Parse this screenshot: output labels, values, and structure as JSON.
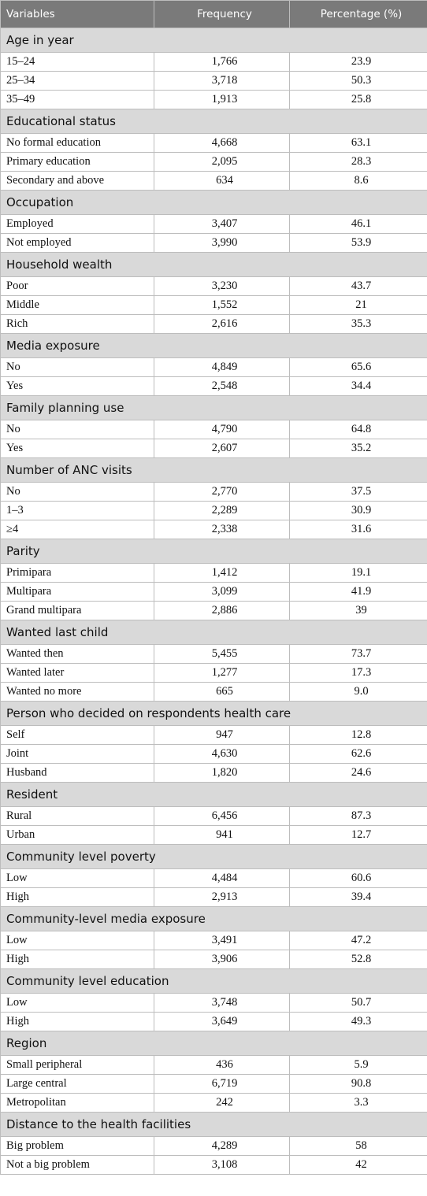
{
  "headers": [
    "Variables",
    "Frequency",
    "Percentage (%)"
  ],
  "sections": [
    {
      "title": "Age in year",
      "rows": [
        {
          "label": "15–24",
          "freq": "1,766",
          "pct": "23.9"
        },
        {
          "label": "25–34",
          "freq": "3,718",
          "pct": "50.3"
        },
        {
          "label": "35–49",
          "freq": "1,913",
          "pct": "25.8"
        }
      ]
    },
    {
      "title": "Educational status",
      "rows": [
        {
          "label": "No formal education",
          "freq": "4,668",
          "pct": "63.1"
        },
        {
          "label": "Primary education",
          "freq": "2,095",
          "pct": "28.3"
        },
        {
          "label": "Secondary and above",
          "freq": "634",
          "pct": "8.6"
        }
      ]
    },
    {
      "title": "Occupation",
      "rows": [
        {
          "label": "Employed",
          "freq": "3,407",
          "pct": "46.1"
        },
        {
          "label": "Not employed",
          "freq": "3,990",
          "pct": "53.9"
        }
      ]
    },
    {
      "title": "Household wealth",
      "rows": [
        {
          "label": "Poor",
          "freq": "3,230",
          "pct": "43.7"
        },
        {
          "label": "Middle",
          "freq": "1,552",
          "pct": "21"
        },
        {
          "label": "Rich",
          "freq": "2,616",
          "pct": "35.3"
        }
      ]
    },
    {
      "title": "Media exposure",
      "rows": [
        {
          "label": "No",
          "freq": "4,849",
          "pct": "65.6"
        },
        {
          "label": "Yes",
          "freq": "2,548",
          "pct": "34.4"
        }
      ]
    },
    {
      "title": "Family planning use",
      "rows": [
        {
          "label": "No",
          "freq": "4,790",
          "pct": "64.8"
        },
        {
          "label": "Yes",
          "freq": "2,607",
          "pct": "35.2"
        }
      ]
    },
    {
      "title": "Number of ANC visits",
      "rows": [
        {
          "label": "No",
          "freq": "2,770",
          "pct": "37.5"
        },
        {
          "label": "1–3",
          "freq": "2,289",
          "pct": "30.9"
        },
        {
          "label": "≥4",
          "freq": "2,338",
          "pct": "31.6"
        }
      ]
    },
    {
      "title": "Parity",
      "rows": [
        {
          "label": "Primipara",
          "freq": "1,412",
          "pct": "19.1"
        },
        {
          "label": "Multipara",
          "freq": "3,099",
          "pct": "41.9"
        },
        {
          "label": "Grand multipara",
          "freq": "2,886",
          "pct": "39"
        }
      ]
    },
    {
      "title": "Wanted last child",
      "rows": [
        {
          "label": "Wanted then",
          "freq": "5,455",
          "pct": "73.7"
        },
        {
          "label": "Wanted later",
          "freq": "1,277",
          "pct": "17.3"
        },
        {
          "label": "Wanted no more",
          "freq": "665",
          "pct": "9.0"
        }
      ]
    },
    {
      "title": "Person who decided on respondents health care",
      "rows": [
        {
          "label": "Self",
          "freq": "947",
          "pct": "12.8"
        },
        {
          "label": "Joint",
          "freq": "4,630",
          "pct": "62.6"
        },
        {
          "label": "Husband",
          "freq": "1,820",
          "pct": "24.6"
        }
      ]
    },
    {
      "title": "Resident",
      "rows": [
        {
          "label": "Rural",
          "freq": "6,456",
          "pct": "87.3"
        },
        {
          "label": "Urban",
          "freq": "941",
          "pct": "12.7"
        }
      ]
    },
    {
      "title": "Community level poverty",
      "rows": [
        {
          "label": "Low",
          "freq": "4,484",
          "pct": "60.6"
        },
        {
          "label": "High",
          "freq": "2,913",
          "pct": "39.4"
        }
      ]
    },
    {
      "title": "Community-level media exposure",
      "rows": [
        {
          "label": "Low",
          "freq": "3,491",
          "pct": "47.2"
        },
        {
          "label": "High",
          "freq": "3,906",
          "pct": "52.8"
        }
      ]
    },
    {
      "title": "Community level education",
      "rows": [
        {
          "label": "Low",
          "freq": "3,748",
          "pct": "50.7"
        },
        {
          "label": "High",
          "freq": "3,649",
          "pct": "49.3"
        }
      ]
    },
    {
      "title": "Region",
      "rows": [
        {
          "label": "Small peripheral",
          "freq": "436",
          "pct": "5.9"
        },
        {
          "label": "Large central",
          "freq": "6,719",
          "pct": "90.8"
        },
        {
          "label": "Metropolitan",
          "freq": "242",
          "pct": "3.3"
        }
      ]
    },
    {
      "title": "Distance to the health facilities",
      "rows": [
        {
          "label": "Big problem",
          "freq": "4,289",
          "pct": "58"
        },
        {
          "label": "Not a big problem",
          "freq": "3,108",
          "pct": "42"
        }
      ]
    }
  ]
}
